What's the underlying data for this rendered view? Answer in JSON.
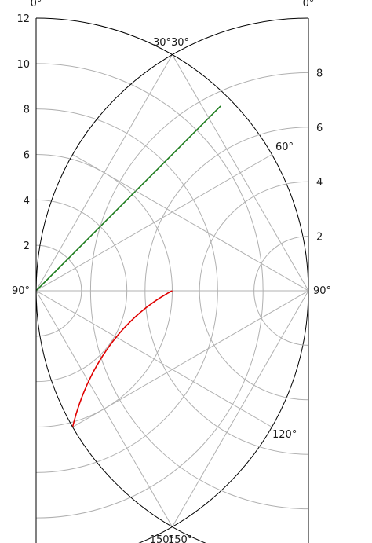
{
  "chart_data": [
    {
      "type": "line",
      "projection": "polar",
      "theta_zero_location": "top",
      "theta_direction": "clockwise",
      "theta_range_deg": [
        0,
        180
      ],
      "rlim": [
        0,
        12
      ],
      "grid": true,
      "theta_ticks": [
        "0°",
        "30°",
        "60°",
        "90°",
        "120°",
        "150°"
      ],
      "r_ticks": [
        "2",
        "4",
        "6",
        "8",
        "10",
        "12"
      ],
      "series": [
        {
          "color": "#1a7a1a",
          "theta_deg": [
            0,
            45,
            45
          ],
          "r": [
            0,
            0,
            11.5
          ]
        }
      ]
    },
    {
      "type": "line",
      "projection": "polar",
      "theta_zero_location": "top",
      "theta_direction": "clockwise",
      "theta_range_deg": [
        0,
        180
      ],
      "rlim": [
        0,
        10
      ],
      "grid": true,
      "theta_ticks": [
        "0°",
        "30°",
        "60°",
        "90°",
        "120°",
        "150°"
      ],
      "r_ticks": [
        "2",
        "4",
        "6",
        "8"
      ],
      "series": [
        {
          "color": "#e00000",
          "theta_deg": [
            90,
            120
          ],
          "r": [
            5,
            10
          ]
        }
      ]
    }
  ]
}
